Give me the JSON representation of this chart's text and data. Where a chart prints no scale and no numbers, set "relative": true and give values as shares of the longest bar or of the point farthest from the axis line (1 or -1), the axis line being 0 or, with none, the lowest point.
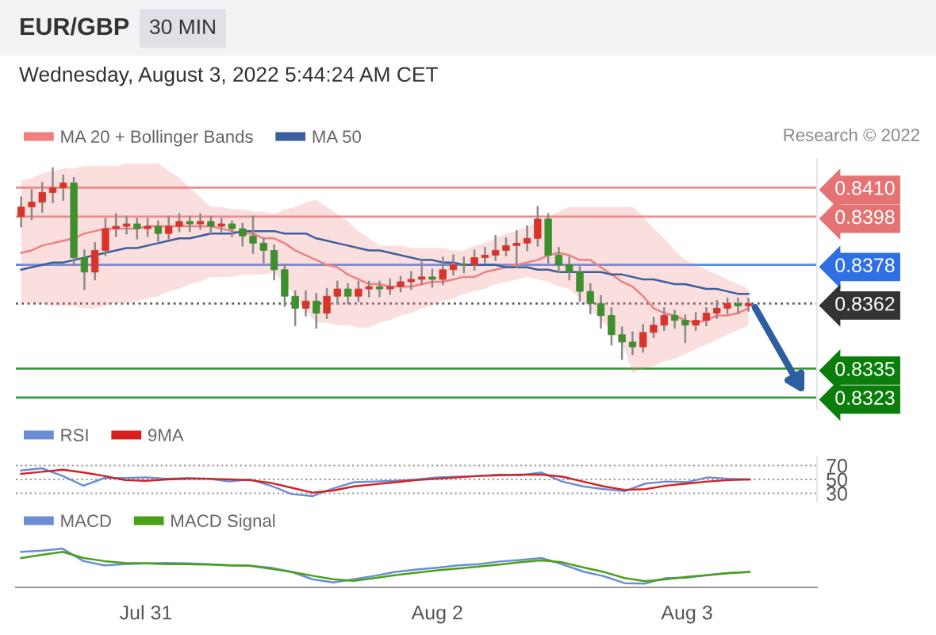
{
  "chart_data": [
    {
      "type": "candlestick",
      "title": "EUR/GBP",
      "subtitle": "Wednesday, August 3, 2022 5:44:24 AM CET",
      "annotations": [
        "30 MIN",
        "Research © 2022"
      ],
      "categories": [
        null,
        null,
        null,
        null,
        null,
        null,
        null,
        null,
        null,
        null,
        null,
        null,
        null,
        null,
        null,
        null,
        null,
        null,
        null,
        null,
        null,
        null,
        null,
        null,
        null,
        null,
        null,
        null,
        null,
        null,
        null,
        null,
        null,
        null,
        null,
        null,
        null,
        null,
        null,
        null,
        null,
        null,
        null,
        null,
        null,
        null,
        null,
        null,
        null,
        null,
        null,
        null,
        null,
        null,
        null,
        null,
        null,
        null,
        null,
        null,
        null,
        null,
        null,
        null,
        null,
        null,
        null,
        null,
        null,
        null
      ],
      "ohlc": [
        [
          0.8398,
          0.8406,
          0.8394,
          0.8402
        ],
        [
          0.8402,
          0.8409,
          0.8397,
          0.8404
        ],
        [
          0.8404,
          0.8412,
          0.84,
          0.8408
        ],
        [
          0.8408,
          0.8418,
          0.8404,
          0.841
        ],
        [
          0.841,
          0.8415,
          0.8405,
          0.8412
        ],
        [
          0.8412,
          0.8414,
          0.8378,
          0.8381
        ],
        [
          0.8381,
          0.8384,
          0.8368,
          0.8375
        ],
        [
          0.8375,
          0.8387,
          0.8372,
          0.8384
        ],
        [
          0.8384,
          0.8397,
          0.8382,
          0.8393
        ],
        [
          0.8393,
          0.8399,
          0.839,
          0.8394
        ],
        [
          0.8394,
          0.8398,
          0.8391,
          0.8395
        ],
        [
          0.8395,
          0.8397,
          0.8389,
          0.8393
        ],
        [
          0.8393,
          0.8397,
          0.839,
          0.8394
        ],
        [
          0.8394,
          0.8396,
          0.8388,
          0.8391
        ],
        [
          0.8391,
          0.8398,
          0.8389,
          0.8394
        ],
        [
          0.8394,
          0.8399,
          0.8392,
          0.8396
        ],
        [
          0.8396,
          0.8398,
          0.8392,
          0.8395
        ],
        [
          0.8395,
          0.8399,
          0.8393,
          0.8396
        ],
        [
          0.8396,
          0.8398,
          0.8391,
          0.8394
        ],
        [
          0.8394,
          0.8397,
          0.8392,
          0.8395
        ],
        [
          0.8395,
          0.8396,
          0.839,
          0.8393
        ],
        [
          0.8393,
          0.8395,
          0.8386,
          0.839
        ],
        [
          0.839,
          0.8398,
          0.8383,
          0.8387
        ],
        [
          0.8387,
          0.8389,
          0.8379,
          0.8384
        ],
        [
          0.8384,
          0.8386,
          0.8372,
          0.8376
        ],
        [
          0.8376,
          0.8378,
          0.8361,
          0.8365
        ],
        [
          0.8365,
          0.8367,
          0.8353,
          0.836
        ],
        [
          0.836,
          0.8367,
          0.8357,
          0.8363
        ],
        [
          0.8363,
          0.8366,
          0.8352,
          0.8358
        ],
        [
          0.8358,
          0.8368,
          0.8356,
          0.8365
        ],
        [
          0.8365,
          0.8371,
          0.8362,
          0.8368
        ],
        [
          0.8368,
          0.837,
          0.8362,
          0.8365
        ],
        [
          0.8365,
          0.8371,
          0.8363,
          0.8368
        ],
        [
          0.8368,
          0.8371,
          0.8365,
          0.8369
        ],
        [
          0.8369,
          0.8371,
          0.8365,
          0.8368
        ],
        [
          0.8368,
          0.8372,
          0.8366,
          0.8369
        ],
        [
          0.8369,
          0.8373,
          0.8367,
          0.8371
        ],
        [
          0.8371,
          0.8375,
          0.8368,
          0.8372
        ],
        [
          0.8372,
          0.8379,
          0.837,
          0.8373
        ],
        [
          0.8373,
          0.8376,
          0.8369,
          0.8372
        ],
        [
          0.8372,
          0.8381,
          0.837,
          0.8376
        ],
        [
          0.8376,
          0.8382,
          0.8374,
          0.8378
        ],
        [
          0.8378,
          0.8381,
          0.8375,
          0.8378
        ],
        [
          0.8378,
          0.8384,
          0.8376,
          0.8381
        ],
        [
          0.8381,
          0.8385,
          0.8379,
          0.8382
        ],
        [
          0.8382,
          0.839,
          0.838,
          0.8384
        ],
        [
          0.8384,
          0.8389,
          0.8382,
          0.8386
        ],
        [
          0.8386,
          0.8392,
          0.8377,
          0.8387
        ],
        [
          0.8387,
          0.8394,
          0.8384,
          0.8389
        ],
        [
          0.8389,
          0.8402,
          0.8386,
          0.8397
        ],
        [
          0.8397,
          0.8399,
          0.8379,
          0.8382
        ],
        [
          0.8382,
          0.8385,
          0.8375,
          0.8378
        ],
        [
          0.8378,
          0.8381,
          0.8372,
          0.8375
        ],
        [
          0.8375,
          0.8377,
          0.8363,
          0.8367
        ],
        [
          0.8367,
          0.837,
          0.8358,
          0.8362
        ],
        [
          0.8362,
          0.8365,
          0.8352,
          0.8357
        ],
        [
          0.8357,
          0.836,
          0.8345,
          0.8349
        ],
        [
          0.8349,
          0.8352,
          0.8339,
          0.8346
        ],
        [
          0.8346,
          0.835,
          0.8341,
          0.8344
        ],
        [
          0.8344,
          0.8353,
          0.8342,
          0.835
        ],
        [
          0.835,
          0.8356,
          0.8348,
          0.8353
        ],
        [
          0.8353,
          0.836,
          0.8351,
          0.8357
        ],
        [
          0.8357,
          0.8359,
          0.8352,
          0.8355
        ],
        [
          0.8355,
          0.8357,
          0.8346,
          0.8353
        ],
        [
          0.8353,
          0.8358,
          0.8351,
          0.8355
        ],
        [
          0.8355,
          0.836,
          0.8353,
          0.8358
        ],
        [
          0.8358,
          0.8363,
          0.8356,
          0.836
        ],
        [
          0.836,
          0.8364,
          0.8358,
          0.8362
        ],
        [
          0.8362,
          0.8364,
          0.8358,
          0.8361
        ],
        [
          0.8361,
          0.8364,
          0.8359,
          0.8362
        ]
      ],
      "colors": [
        "#d9342b",
        "#d9342b",
        "#d9342b",
        "#d9342b",
        "#d9342b",
        "#3f8f2f",
        "#3f8f2f",
        "#d9342b",
        "#d9342b",
        "#d9342b",
        "#d9342b",
        "#3f8f2f",
        "#d9342b",
        "#3f8f2f",
        "#d9342b",
        "#d9342b",
        "#3f8f2f",
        "#d9342b",
        "#3f8f2f",
        "#d9342b",
        "#3f8f2f",
        "#3f8f2f",
        "#3f8f2f",
        "#3f8f2f",
        "#3f8f2f",
        "#3f8f2f",
        "#3f8f2f",
        "#d9342b",
        "#3f8f2f",
        "#d9342b",
        "#d9342b",
        "#3f8f2f",
        "#d9342b",
        "#d9342b",
        "#3f8f2f",
        "#d9342b",
        "#d9342b",
        "#d9342b",
        "#d9342b",
        "#3f8f2f",
        "#d9342b",
        "#d9342b",
        "#3f8f2f",
        "#d9342b",
        "#d9342b",
        "#d9342b",
        "#d9342b",
        "#d9342b",
        "#d9342b",
        "#d9342b",
        "#3f8f2f",
        "#3f8f2f",
        "#3f8f2f",
        "#3f8f2f",
        "#3f8f2f",
        "#3f8f2f",
        "#3f8f2f",
        "#3f8f2f",
        "#3f8f2f",
        "#d9342b",
        "#d9342b",
        "#d9342b",
        "#3f8f2f",
        "#3f8f2f",
        "#d9342b",
        "#d9342b",
        "#d9342b",
        "#d9342b",
        "#3f8f2f",
        "#d9342b"
      ],
      "series": [
        {
          "name": "MA 20 + Bollinger Bands",
          "type": "line",
          "color": "#f08080",
          "values": [
            0.8383,
            0.8384,
            0.8386,
            0.8387,
            0.8388,
            0.8389,
            0.8391,
            0.8392,
            0.8393,
            0.8393,
            0.8393,
            0.8393,
            0.8394,
            0.8394,
            0.8394,
            0.8394,
            0.8394,
            0.8394,
            0.8394,
            0.8393,
            0.8392,
            0.8391,
            0.8391,
            0.8389,
            0.8389,
            0.8387,
            0.8384,
            0.8382,
            0.838,
            0.8378,
            0.8377,
            0.8374,
            0.8372,
            0.837,
            0.837,
            0.8369,
            0.8369,
            0.8369,
            0.837,
            0.8371,
            0.8371,
            0.8372,
            0.8373,
            0.8373,
            0.8375,
            0.8376,
            0.8377,
            0.8378,
            0.8379,
            0.838,
            0.8382,
            0.8383,
            0.8382,
            0.838,
            0.838,
            0.8377,
            0.8374,
            0.8371,
            0.8369,
            0.8365,
            0.836,
            0.8358,
            0.8357,
            0.8355,
            0.8354,
            0.8355,
            0.8357,
            0.8357,
            0.8358,
            0.836
          ],
          "upper": [
            0.8413,
            0.8414,
            0.8416,
            0.8417,
            0.8418,
            0.8418,
            0.8419,
            0.8419,
            0.8419,
            0.8419,
            0.842,
            0.842,
            0.842,
            0.842,
            0.8417,
            0.8414,
            0.841,
            0.8406,
            0.8402,
            0.8402,
            0.8401,
            0.8401,
            0.84,
            0.84,
            0.8399,
            0.8401,
            0.8402,
            0.8404,
            0.8405,
            0.8402,
            0.8399,
            0.8396,
            0.8392,
            0.8389,
            0.8386,
            0.8386,
            0.8386,
            0.8385,
            0.8385,
            0.8385,
            0.8385,
            0.8384,
            0.8384,
            0.8386,
            0.8387,
            0.8389,
            0.8391,
            0.8392,
            0.8394,
            0.8396,
            0.8398,
            0.84,
            0.8402,
            0.8402,
            0.8402,
            0.8402,
            0.8402,
            0.8402,
            0.8402,
            0.8398,
            0.8393,
            0.8389,
            0.8384,
            0.838,
            0.8378,
            0.8376,
            0.8374,
            0.8372,
            0.837,
            0.8368
          ],
          "lower": [
            0.8362,
            0.8362,
            0.8362,
            0.8361,
            0.8361,
            0.8361,
            0.836,
            0.836,
            0.8361,
            0.8362,
            0.8362,
            0.8363,
            0.8364,
            0.8365,
            0.8367,
            0.8368,
            0.837,
            0.8371,
            0.8373,
            0.8373,
            0.8373,
            0.8374,
            0.8374,
            0.8374,
            0.8375,
            0.837,
            0.8365,
            0.8359,
            0.8354,
            0.8354,
            0.8353,
            0.8353,
            0.8352,
            0.8352,
            0.8354,
            0.8355,
            0.8357,
            0.8358,
            0.836,
            0.8361,
            0.8363,
            0.8364,
            0.8366,
            0.8367,
            0.8368,
            0.837,
            0.8371,
            0.8372,
            0.8373,
            0.8372,
            0.8371,
            0.8369,
            0.8368,
            0.8364,
            0.836,
            0.8355,
            0.8351,
            0.8346,
            0.8333,
            0.8335,
            0.8336,
            0.8338,
            0.8339,
            0.8341,
            0.8343,
            0.8345,
            0.8347,
            0.8349,
            0.8351,
            0.8353
          ]
        },
        {
          "name": "MA 50",
          "type": "line",
          "color": "#3b5f9e",
          "values": [
            0.8376,
            0.8377,
            0.8378,
            0.8379,
            0.8379,
            0.838,
            0.8381,
            0.8382,
            0.8383,
            0.8384,
            0.8385,
            0.8385,
            0.8386,
            0.8387,
            0.8388,
            0.8389,
            0.8389,
            0.839,
            0.8391,
            0.8391,
            0.8391,
            0.8392,
            0.8392,
            0.8392,
            0.8392,
            0.8391,
            0.8391,
            0.8391,
            0.8389,
            0.8388,
            0.8387,
            0.8386,
            0.8385,
            0.8384,
            0.8384,
            0.8383,
            0.8382,
            0.8381,
            0.838,
            0.838,
            0.8379,
            0.8379,
            0.8378,
            0.8378,
            0.8378,
            0.8378,
            0.8377,
            0.8377,
            0.8377,
            0.8376,
            0.8376,
            0.8375,
            0.8375,
            0.8375,
            0.8375,
            0.8375,
            0.8374,
            0.8374,
            0.8373,
            0.8372,
            0.8372,
            0.8371,
            0.837,
            0.837,
            0.8369,
            0.8368,
            0.8368,
            0.8367,
            0.8366,
            0.8366
          ]
        }
      ],
      "ylim": [
        0.8318,
        0.8422
      ],
      "yticks": [
        {
          "value": 0.841,
          "label": "0.8410"
        },
        {
          "value": 0.8398,
          "label": "0.8398"
        },
        {
          "value": 0.8378,
          "label": "0.8378"
        },
        {
          "value": 0.8362,
          "label": "0.8362"
        },
        {
          "value": 0.8335,
          "label": "0.8335"
        },
        {
          "value": 0.8323,
          "label": "0.8323"
        }
      ],
      "ref_lines": [
        {
          "axis": "y",
          "value": 0.841,
          "color": "#e57373"
        },
        {
          "axis": "y",
          "value": 0.8398,
          "color": "#e57373"
        },
        {
          "axis": "y",
          "value": 0.8378,
          "color": "#2f6fe4"
        },
        {
          "axis": "y",
          "value": 0.8362,
          "color": "#333333",
          "line_style": "dotted"
        },
        {
          "axis": "y",
          "value": 0.8335,
          "color": "#0a7d0a"
        },
        {
          "axis": "y",
          "value": 0.8323,
          "color": "#0a7d0a"
        }
      ],
      "legend": "top left",
      "tick_labels": "y"
    },
    {
      "type": "line",
      "categories": [
        null,
        null,
        null,
        null,
        null,
        null,
        null,
        null,
        null,
        null,
        null,
        null,
        null,
        null,
        null,
        null,
        null,
        null,
        null,
        null,
        null,
        null,
        null,
        null,
        null,
        null,
        null,
        null,
        null,
        null,
        null,
        null,
        null,
        null,
        null,
        null
      ],
      "series": [
        {
          "name": "RSI",
          "color": "#6b8dd6",
          "values": [
            63,
            66,
            55,
            41,
            52,
            52,
            53,
            51,
            52,
            51,
            47,
            50,
            41,
            29,
            26,
            37,
            46,
            47,
            48,
            50,
            53,
            54,
            55,
            57,
            56,
            60,
            47,
            40,
            36,
            33,
            44,
            47,
            46,
            53,
            51,
            50
          ]
        },
        {
          "name": "9MA",
          "color": "#d62020",
          "values": [
            58,
            61,
            64,
            60,
            55,
            49,
            48,
            50,
            51,
            51,
            50,
            49,
            45,
            38,
            31,
            34,
            40,
            43,
            46,
            49,
            51,
            53,
            55,
            56,
            57,
            57,
            54,
            47,
            40,
            35,
            36,
            41,
            44,
            47,
            49,
            50
          ]
        }
      ],
      "ylim": [
        18,
        82
      ],
      "yticks": [
        30,
        50,
        70
      ],
      "grid": "y",
      "legend": "top left",
      "tick_labels": "y"
    },
    {
      "type": "line",
      "relative": true,
      "categories": [
        null,
        null,
        null,
        null,
        null,
        null,
        "Jul 31",
        null,
        null,
        null,
        null,
        null,
        null,
        null,
        null,
        null,
        null,
        null,
        null,
        null,
        "Aug 2",
        null,
        null,
        null,
        null,
        null,
        null,
        null,
        null,
        null,
        null,
        null,
        "Aug 3",
        null,
        null,
        null
      ],
      "series": [
        {
          "name": "MACD",
          "color": "#6b8dd6",
          "values": [
            0.92,
            0.95,
            1.0,
            0.68,
            0.57,
            0.6,
            0.62,
            0.63,
            0.62,
            0.6,
            0.57,
            0.56,
            0.51,
            0.4,
            0.21,
            0.13,
            0.21,
            0.3,
            0.4,
            0.46,
            0.51,
            0.57,
            0.6,
            0.67,
            0.71,
            0.76,
            0.6,
            0.41,
            0.29,
            0.11,
            0.1,
            0.24,
            0.25,
            0.32,
            0.37,
            0.4
          ]
        },
        {
          "name": "MACD Signal",
          "color": "#4aa017",
          "values": [
            0.76,
            0.84,
            0.92,
            0.76,
            0.68,
            0.63,
            0.62,
            0.6,
            0.6,
            0.59,
            0.57,
            0.56,
            0.48,
            0.4,
            0.3,
            0.21,
            0.17,
            0.24,
            0.32,
            0.38,
            0.44,
            0.49,
            0.54,
            0.59,
            0.65,
            0.7,
            0.65,
            0.52,
            0.4,
            0.24,
            0.16,
            0.21,
            0.27,
            0.32,
            0.37,
            0.4
          ]
        }
      ],
      "legend": "top left",
      "tick_labels": "x"
    }
  ]
}
